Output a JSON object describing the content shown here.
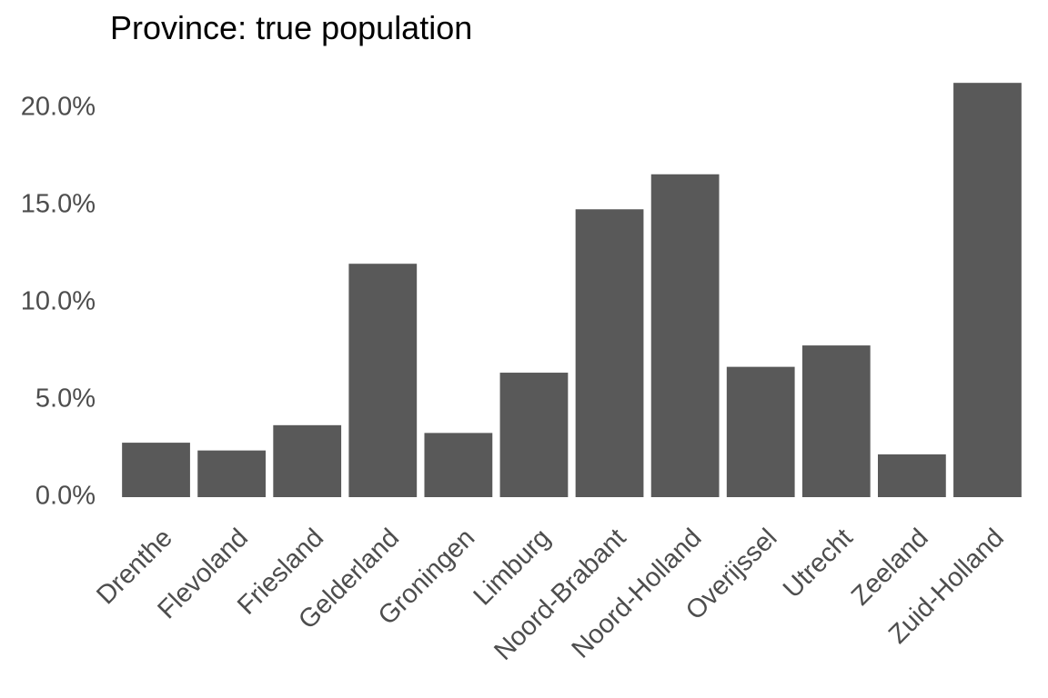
{
  "chart_data": {
    "type": "bar",
    "title": "Province: true population",
    "xlabel": "",
    "ylabel": "",
    "categories": [
      "Drenthe",
      "Flevoland",
      "Friesland",
      "Gelderland",
      "Groningen",
      "Limburg",
      "Noord-Brabant",
      "Noord-Holland",
      "Overijssel",
      "Utrecht",
      "Zeeland",
      "Zuid-Holland"
    ],
    "values": [
      2.8,
      2.4,
      3.7,
      12.0,
      3.3,
      6.4,
      14.8,
      16.6,
      6.7,
      7.8,
      2.2,
      21.3
    ],
    "value_unit": "%",
    "ylim": [
      0,
      22
    ],
    "yticks": [
      0,
      5,
      10,
      15,
      20
    ],
    "ytick_labels": [
      "0.0%",
      "5.0%",
      "10.0%",
      "15.0%",
      "20.0%"
    ],
    "bar_color": "#595959",
    "tick_label_color": "#4d4d4d",
    "grid": false,
    "legend": "none"
  }
}
